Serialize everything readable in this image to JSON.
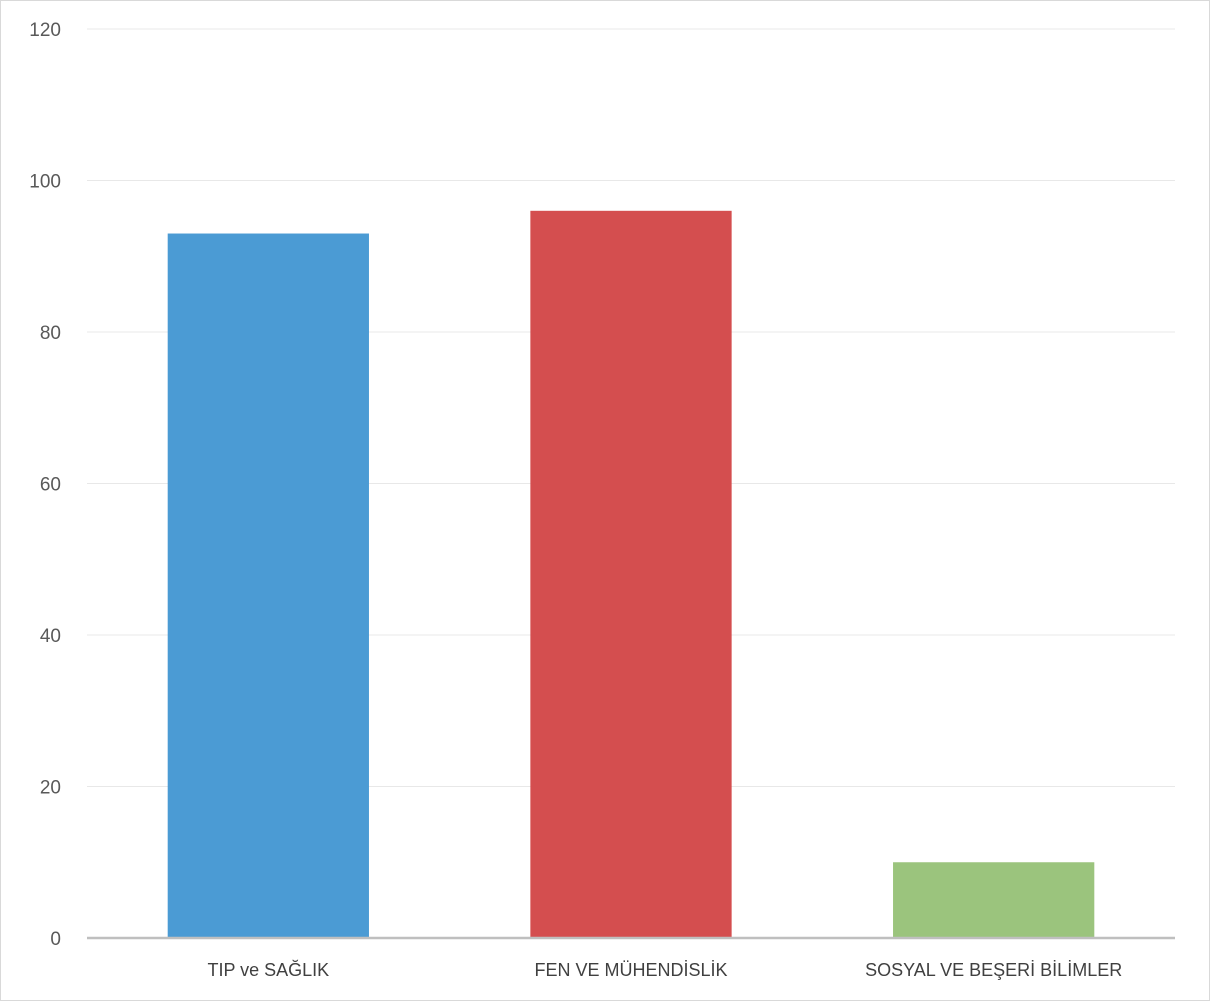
{
  "chart_data": {
    "type": "bar",
    "categories": [
      "TIP ve SAĞLIK",
      "FEN VE MÜHENDİSLİK",
      "SOSYAL VE BEŞERİ BİLİMLER"
    ],
    "values": [
      93,
      96,
      10
    ],
    "colors": [
      "#4b9bd4",
      "#d44e4f",
      "#9bc47d"
    ],
    "ylim": [
      0,
      120
    ],
    "yticks": [
      0,
      20,
      40,
      60,
      80,
      100,
      120
    ],
    "title": "",
    "xlabel": "",
    "ylabel": "",
    "grid": true,
    "legend": "none"
  }
}
